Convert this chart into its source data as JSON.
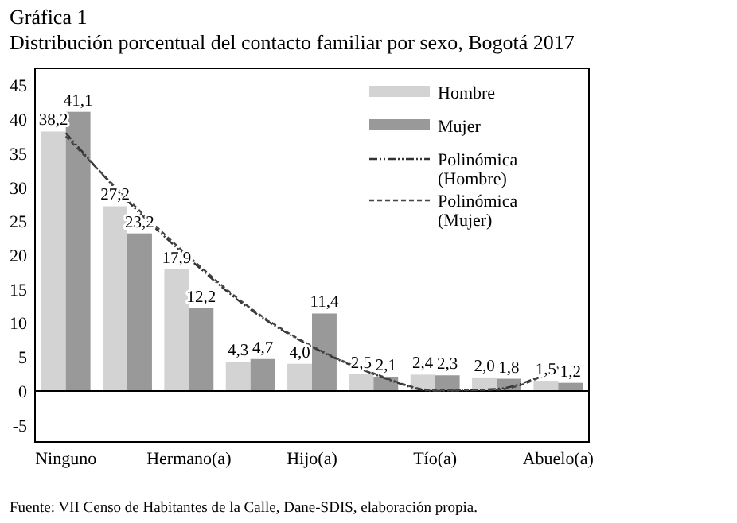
{
  "chart_data": {
    "type": "bar",
    "title": "Gráfica 1",
    "subtitle": "Distribución porcentual del contacto familiar por sexo, Bogotá 2017",
    "categories": [
      "Ninguno",
      null,
      "Hermano(a)",
      null,
      "Hijo(a)",
      null,
      "Tío(a)",
      null,
      "Abuelo(a)"
    ],
    "series": [
      {
        "name": "Hombre",
        "color": "#d3d3d3",
        "values": [
          38.2,
          27.2,
          17.9,
          4.3,
          4.0,
          2.5,
          2.4,
          2.0,
          1.5
        ],
        "value_labels": [
          "38,2",
          "27,2",
          "17,9",
          "4,3",
          "4,0",
          "2,5",
          "2,4",
          "2,0",
          "1,5"
        ]
      },
      {
        "name": "Mujer",
        "color": "#999999",
        "values": [
          41.1,
          23.2,
          12.2,
          4.7,
          11.4,
          2.1,
          2.3,
          1.8,
          1.2
        ],
        "value_labels": [
          "41,1",
          "23,2",
          "12,2",
          "4,7",
          "11,4",
          "2,1",
          "2,3",
          "1,8",
          "1,2"
        ]
      },
      {
        "name": "Polinómica (Hombre)",
        "type": "line",
        "color": "#333333",
        "line_style": "dotted",
        "values": [
          38,
          28,
          19.5,
          12,
          6.5,
          2.5,
          0,
          0.3,
          3.5
        ]
      },
      {
        "name": "Polinómica (Mujer)",
        "type": "line",
        "color": "#444444",
        "line_style": "dashed",
        "values": [
          37.5,
          28.3,
          19.8,
          12.2,
          6.6,
          2.6,
          0.1,
          0.2,
          3.4
        ]
      }
    ],
    "ylim": [
      -7.5,
      47.5
    ],
    "yticks": [
      -5,
      0,
      5,
      10,
      15,
      20,
      25,
      30,
      35,
      40,
      45
    ],
    "ref_lines": [
      {
        "axis": "y",
        "value": 0
      }
    ],
    "legend": "top right",
    "annotations": [
      "Fuente: VII Censo de Habitantes de la Calle, Dane-SDIS, elaboración propia."
    ]
  }
}
